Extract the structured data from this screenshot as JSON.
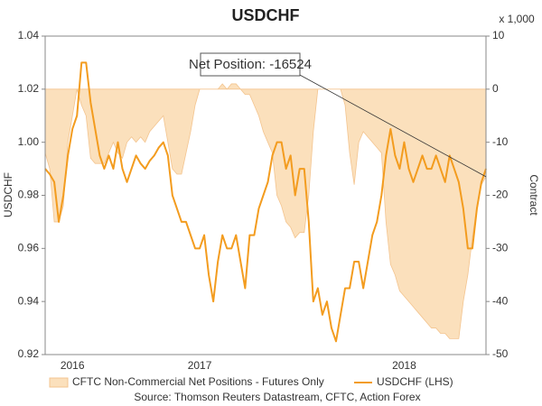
{
  "chart_data": {
    "type": "line",
    "title": "USDCHF",
    "y_label": "USDCHF",
    "y2_label": "Contract",
    "y2_unit": "x 1,000",
    "annotation": "Net Position: -16524",
    "source": "Source: Thomson Reuters Datastream, CFTC, Action Forex",
    "categories": [
      null,
      null,
      null,
      null,
      null,
      null,
      "2016",
      null,
      null,
      null,
      null,
      null,
      null,
      null,
      null,
      null,
      null,
      null,
      null,
      null,
      null,
      null,
      null,
      null,
      null,
      null,
      null,
      null,
      null,
      null,
      null,
      null,
      null,
      null,
      "2017",
      null,
      null,
      null,
      null,
      null,
      null,
      null,
      null,
      null,
      null,
      null,
      null,
      null,
      null,
      null,
      null,
      null,
      null,
      null,
      null,
      null,
      null,
      null,
      null,
      null,
      null,
      null,
      null,
      null,
      null,
      null,
      null,
      null,
      null,
      null,
      null,
      null,
      null,
      null,
      null,
      null,
      null,
      null,
      null,
      "2018",
      null,
      null,
      null,
      null,
      null,
      null,
      null,
      null,
      null,
      null,
      null,
      null,
      null,
      null,
      null,
      null,
      null,
      null
    ],
    "series": [
      {
        "name": "CFTC Non-Commercial Net Positions - Futures Only",
        "type": "area",
        "axis": "y2",
        "color": "#fbe0bc",
        "values": [
          -12,
          -15,
          -25,
          -25,
          -22,
          -10,
          -5,
          0,
          -3,
          -5,
          -13,
          -14,
          -14,
          -14,
          -12,
          -10,
          -12,
          -13,
          -10,
          -9,
          -10,
          -9,
          -10,
          -8,
          -7,
          -6,
          -5,
          -10,
          -15,
          -16,
          -16,
          -12,
          -8,
          -3,
          0,
          0,
          0,
          0,
          0,
          1,
          0,
          1,
          1,
          0,
          -1,
          -1,
          -3,
          -5,
          -8,
          -10,
          -12,
          -20,
          -22,
          -25,
          -26,
          -28,
          -27,
          -27,
          -20,
          -8,
          0,
          0,
          0,
          0,
          0,
          0,
          -3,
          -12,
          -18,
          -10,
          -8,
          -9,
          -10,
          -11,
          -12,
          -25,
          -33,
          -35,
          -38,
          -39,
          -40,
          -41,
          -42,
          -43,
          -44,
          -45,
          -45,
          -46,
          -46,
          -47,
          -47,
          -47,
          -40,
          -35,
          -28,
          -22,
          -18,
          -16.5
        ]
      },
      {
        "name": "USDCHF (LHS)",
        "type": "line",
        "color": "#f39c1f",
        "values": [
          0.99,
          0.988,
          0.985,
          0.97,
          0.98,
          0.995,
          1.005,
          1.01,
          1.03,
          1.03,
          1.015,
          1.005,
          0.995,
          0.99,
          0.995,
          0.99,
          1.0,
          0.99,
          0.985,
          0.99,
          0.995,
          0.992,
          0.99,
          0.993,
          0.995,
          0.998,
          1.0,
          0.995,
          0.98,
          0.975,
          0.97,
          0.97,
          0.965,
          0.96,
          0.96,
          0.965,
          0.95,
          0.94,
          0.955,
          0.965,
          0.96,
          0.96,
          0.965,
          0.955,
          0.945,
          0.965,
          0.965,
          0.975,
          0.98,
          0.985,
          0.995,
          1.0,
          1.0,
          0.99,
          0.995,
          0.98,
          0.99,
          0.99,
          0.97,
          0.94,
          0.945,
          0.935,
          0.94,
          0.93,
          0.925,
          0.935,
          0.945,
          0.945,
          0.955,
          0.955,
          0.945,
          0.955,
          0.965,
          0.97,
          0.98,
          0.995,
          1.005,
          0.995,
          0.99,
          1.0,
          0.99,
          0.985,
          0.99,
          0.995,
          0.99,
          0.99,
          0.995,
          0.99,
          0.985,
          0.995,
          0.99,
          0.985,
          0.975,
          0.96,
          0.96,
          0.975,
          0.985,
          0.99
        ]
      }
    ],
    "ylim": [
      0.92,
      1.04
    ],
    "yticks": [
      0.92,
      0.94,
      0.96,
      0.98,
      {
        "value": 1,
        "label": "1.00"
      },
      1.02,
      1.04
    ],
    "y2lim": [
      -50,
      10
    ],
    "y2ticks": [
      -50,
      -40,
      -30,
      -20,
      -10,
      0,
      10
    ]
  }
}
